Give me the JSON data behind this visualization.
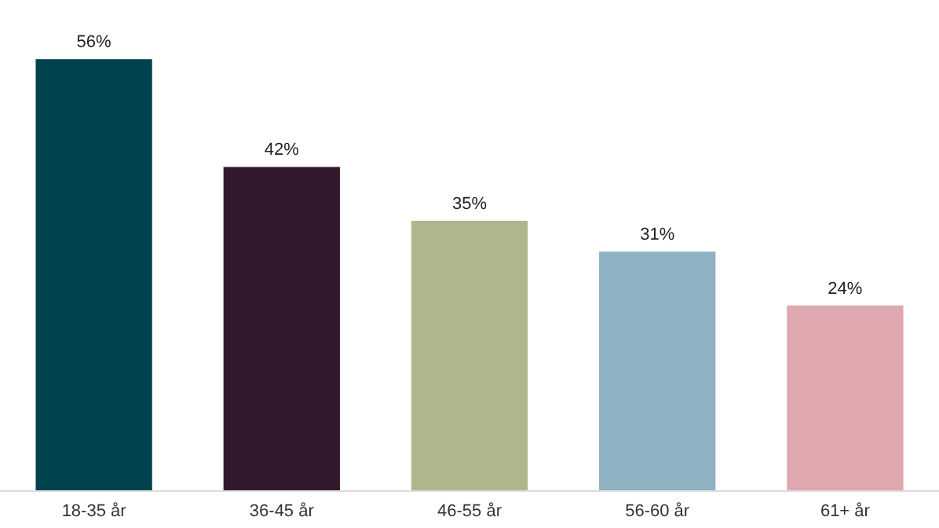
{
  "chart_data": {
    "type": "bar",
    "categories": [
      "18-35 år",
      "36-45 år",
      "46-55 år",
      "56-60 år",
      "61+ år"
    ],
    "values": [
      56,
      42,
      35,
      31,
      24
    ],
    "value_labels": [
      "56%",
      "42%",
      "35%",
      "31%",
      "24%"
    ],
    "colors": [
      "#00434f",
      "#33192e",
      "#adb78b",
      "#8fb2c2",
      "#dea8ae"
    ]
  }
}
